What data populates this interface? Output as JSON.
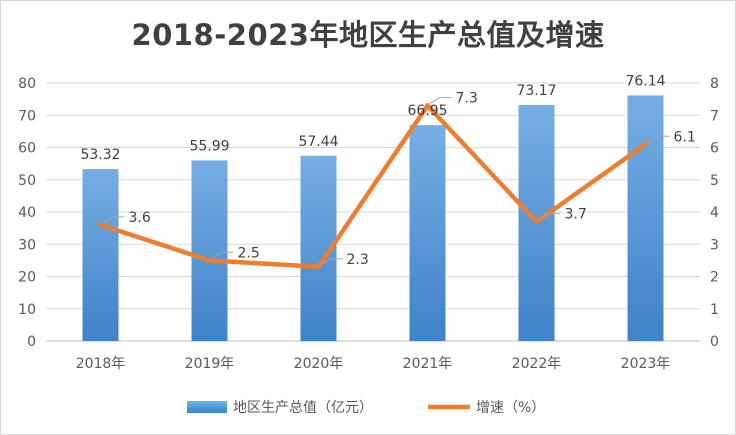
{
  "chart_data": {
    "type": "bar+line",
    "title": "2018-2023年地区生产总值及增速",
    "categories": [
      "2018年",
      "2019年",
      "2020年",
      "2021年",
      "2022年",
      "2023年"
    ],
    "series": [
      {
        "name": "地区生产总值（亿元）",
        "type": "bar",
        "axis": "left",
        "values": [
          53.32,
          55.99,
          57.44,
          66.95,
          73.17,
          76.14
        ],
        "labels": [
          "53.32",
          "55.99",
          "57.44",
          "66.95",
          "73.17",
          "76.14"
        ],
        "color": "#5b9bd5"
      },
      {
        "name": "增速（%）",
        "type": "line",
        "axis": "right",
        "values": [
          3.6,
          2.5,
          2.3,
          7.3,
          3.7,
          6.1
        ],
        "labels": [
          "3.6",
          "2.5",
          "2.3",
          "7.3",
          "3.7",
          "6.1"
        ],
        "color": "#ed7d31"
      }
    ],
    "y_left": {
      "range": [
        0,
        80
      ],
      "ticks": [
        "0",
        "10",
        "20",
        "30",
        "40",
        "50",
        "60",
        "70",
        "80"
      ]
    },
    "y_right": {
      "range": [
        0,
        8
      ],
      "ticks": [
        "0",
        "1",
        "2",
        "3",
        "4",
        "5",
        "6",
        "7",
        "8"
      ]
    },
    "grid": true,
    "legend_position": "bottom"
  }
}
